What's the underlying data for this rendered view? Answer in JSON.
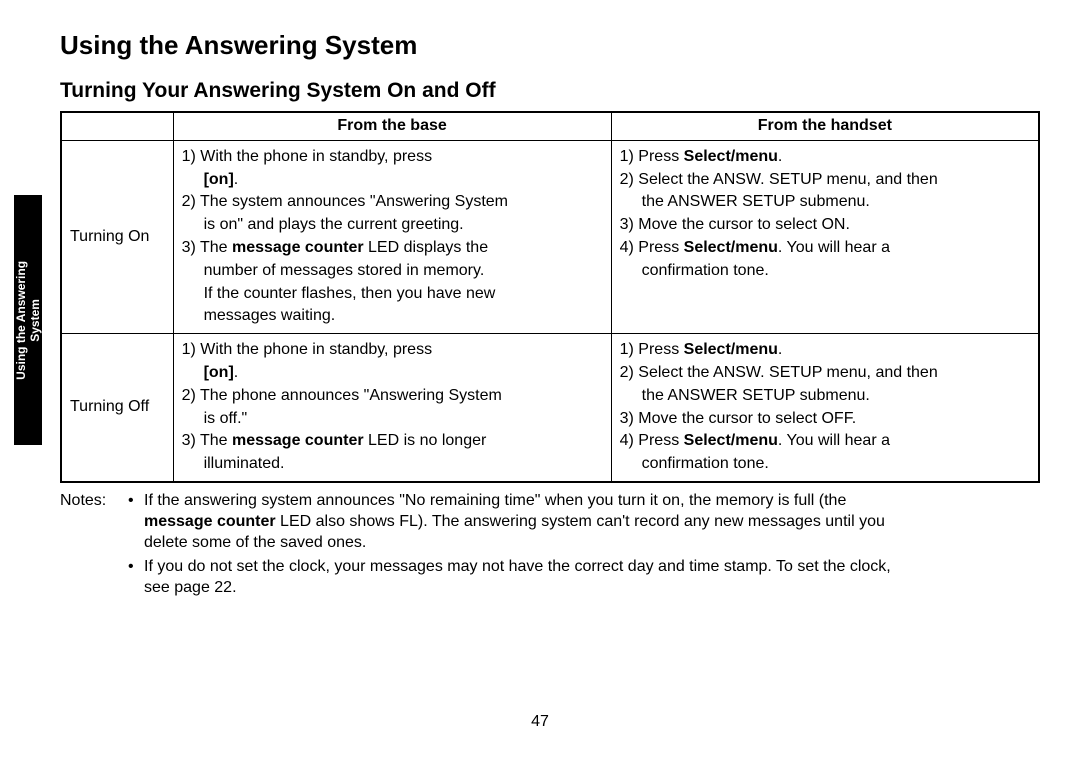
{
  "sideTab": {
    "line1": "Using the Answering",
    "line2": "System"
  },
  "title": "Using the Answering System",
  "subtitle": "Turning Your Answering System On and Off",
  "table": {
    "headers": {
      "col1": "",
      "col2": "From the base",
      "col3": "From the handset"
    },
    "rows": [
      {
        "label": "Turning On",
        "base": {
          "s1a": "1) With the phone in standby, press",
          "s1b_bold": "[on]",
          "s1b_tail": ".",
          "s2a": "2) The system announces \"Answering System",
          "s2b": "is on\" and plays the current greeting.",
          "s3a_pre": "3) The ",
          "s3a_bold": "message counter",
          "s3a_post": " LED displays the",
          "s3b": "number of messages stored in memory.",
          "s3c": "If the counter flashes, then you have new",
          "s3d": "messages waiting."
        },
        "handset": {
          "s1_pre": "1) Press ",
          "s1_bold": "Select/menu",
          "s1_post": ".",
          "s2a": "2) Select the ANSW. SETUP menu, and then",
          "s2b": "the ANSWER SETUP submenu.",
          "s3": "3) Move the cursor to select ON.",
          "s4a_pre": "4) Press ",
          "s4a_bold": "Select/menu",
          "s4a_post": ". You will hear a",
          "s4b": "confirmation tone."
        }
      },
      {
        "label": "Turning Off",
        "base": {
          "s1a": "1) With the phone in standby, press",
          "s1b_bold": "[on]",
          "s1b_tail": ".",
          "s2a": "2) The phone announces \"Answering System",
          "s2b": "is off.\"",
          "s3a_pre": "3) The ",
          "s3a_bold": "message counter",
          "s3a_post": " LED is no longer",
          "s3b": "illuminated."
        },
        "handset": {
          "s1_pre": "1) Press ",
          "s1_bold": "Select/menu",
          "s1_post": ".",
          "s2a": "2) Select the ANSW. SETUP menu, and then",
          "s2b": "the ANSWER SETUP submenu.",
          "s3": "3) Move the cursor to select OFF.",
          "s4a_pre": "4) Press ",
          "s4a_bold": "Select/menu",
          "s4a_post": ". You will hear a",
          "s4b": "confirmation tone."
        }
      }
    ]
  },
  "notes": {
    "label": "Notes:",
    "items": [
      {
        "l1_pre": "If the answering system announces \"No remaining time\" when you turn it on, the memory is full (the",
        "l2_bold": "message counter",
        "l2_post": " LED also shows FL). The answering system can't record any new messages until you",
        "l3": "delete some of the saved ones."
      },
      {
        "l1": "If you do not set the clock, your messages may not have the correct day and time stamp. To set the clock,",
        "l2": "see page 22."
      }
    ]
  },
  "pageNumber": "47"
}
